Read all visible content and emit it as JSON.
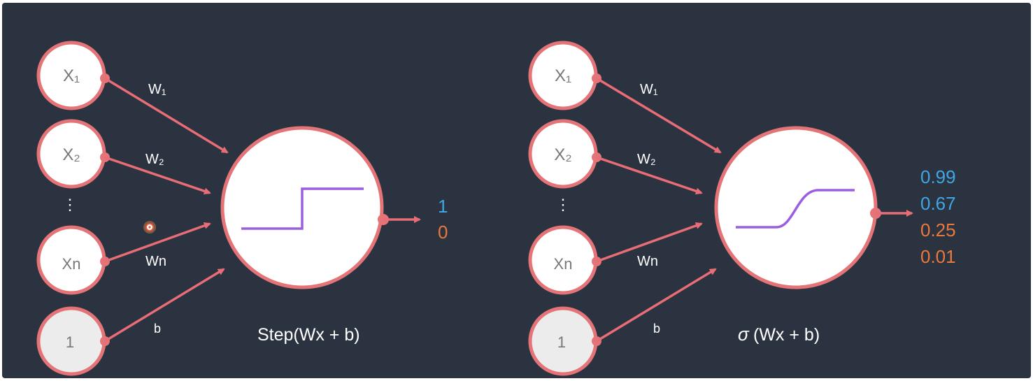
{
  "colors": {
    "background": "#2c3340",
    "node_fill": "#ffffff",
    "bias_fill": "#ececec",
    "node_stroke": "#e47478",
    "arrow": "#e86d76",
    "curve": "#9a5ee0",
    "blue_value": "#3fa6e6",
    "orange_value": "#e8793a",
    "node_text": "#777777",
    "label_text": "#ffffff"
  },
  "left": {
    "inputs": [
      "X₁",
      "X₂",
      "Xn",
      "1"
    ],
    "dots": "⋮",
    "weights": [
      "W₁",
      "W₂",
      "Wn",
      "b"
    ],
    "function_label": "Step(Wx + b)",
    "activation_icon": "step-function-icon",
    "outputs": [
      {
        "text": "1",
        "tone": "blue"
      },
      {
        "text": "0",
        "tone": "orange"
      }
    ]
  },
  "right": {
    "inputs": [
      "X₁",
      "X₂",
      "Xn",
      "1"
    ],
    "dots": "⋮",
    "weights": [
      "W₁",
      "W₂",
      "Wn",
      "b"
    ],
    "function_label_symbol": "σ",
    "function_label": "(Wx + b)",
    "activation_icon": "sigmoid-function-icon",
    "outputs": [
      {
        "text": "0.99",
        "tone": "blue"
      },
      {
        "text": "0.67",
        "tone": "blue"
      },
      {
        "text": "0.25",
        "tone": "orange"
      },
      {
        "text": "0.01",
        "tone": "orange"
      }
    ]
  }
}
